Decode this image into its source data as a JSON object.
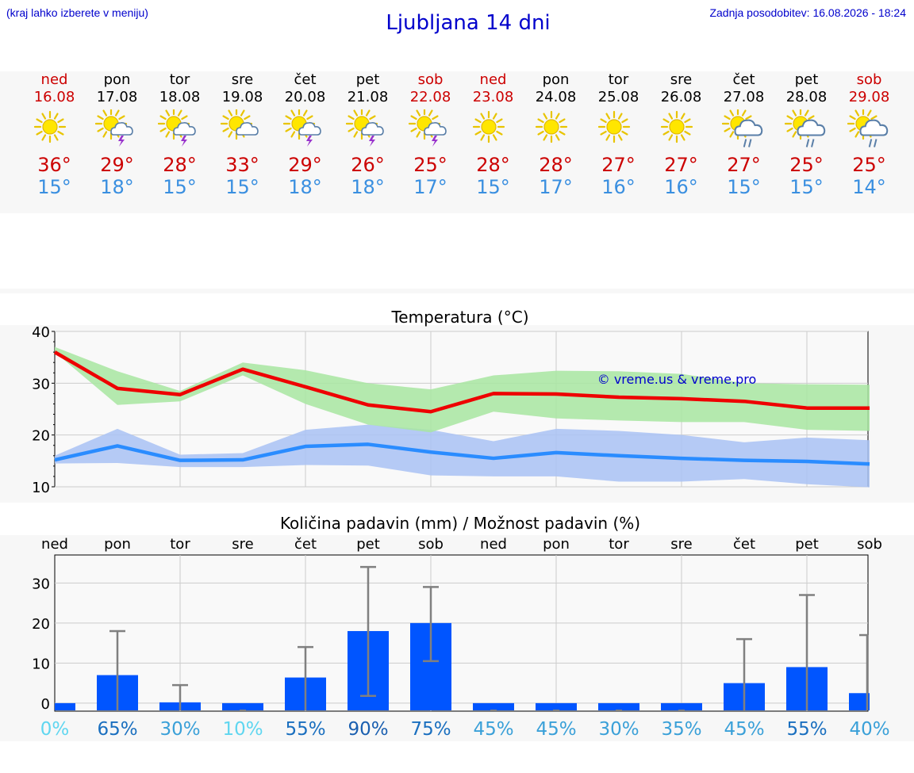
{
  "header": {
    "hint": "(kraj lahko izberete v meniju)",
    "title": "Ljubljana 14 dni",
    "updated": "Zadnja posodobitev: 16.08.2026 - 18:24"
  },
  "days": [
    {
      "name": "ned",
      "date": "16.08",
      "weekend": true,
      "icon": "sun",
      "max": "36°",
      "min": "15°"
    },
    {
      "name": "pon",
      "date": "17.08",
      "weekend": false,
      "icon": "sun-thunder",
      "max": "29°",
      "min": "18°"
    },
    {
      "name": "tor",
      "date": "18.08",
      "weekend": false,
      "icon": "sun-thunder",
      "max": "28°",
      "min": "15°"
    },
    {
      "name": "sre",
      "date": "19.08",
      "weekend": false,
      "icon": "sun-cloud",
      "max": "33°",
      "min": "15°"
    },
    {
      "name": "čet",
      "date": "20.08",
      "weekend": false,
      "icon": "sun-thunder",
      "max": "29°",
      "min": "18°"
    },
    {
      "name": "pet",
      "date": "21.08",
      "weekend": false,
      "icon": "sun-thunder",
      "max": "26°",
      "min": "18°"
    },
    {
      "name": "sob",
      "date": "22.08",
      "weekend": true,
      "icon": "sun-thunder",
      "max": "25°",
      "min": "17°"
    },
    {
      "name": "ned",
      "date": "23.08",
      "weekend": true,
      "icon": "sun",
      "max": "28°",
      "min": "15°"
    },
    {
      "name": "pon",
      "date": "24.08",
      "weekend": false,
      "icon": "sun",
      "max": "28°",
      "min": "17°"
    },
    {
      "name": "tor",
      "date": "25.08",
      "weekend": false,
      "icon": "sun",
      "max": "27°",
      "min": "16°"
    },
    {
      "name": "sre",
      "date": "26.08",
      "weekend": false,
      "icon": "sun",
      "max": "27°",
      "min": "16°"
    },
    {
      "name": "čet",
      "date": "27.08",
      "weekend": false,
      "icon": "sun-rain",
      "max": "27°",
      "min": "15°"
    },
    {
      "name": "pet",
      "date": "28.08",
      "weekend": false,
      "icon": "sun-rain",
      "max": "25°",
      "min": "15°"
    },
    {
      "name": "sob",
      "date": "29.08",
      "weekend": true,
      "icon": "sun-rain",
      "max": "25°",
      "min": "14°"
    }
  ],
  "colors": {
    "red": "#cc0000",
    "blue": "#3a8fe0",
    "maxLine": "#ee0000",
    "minLine": "#2a8cff",
    "maxBand": "#a8e6a1",
    "minBand": "#a9c2f5",
    "bar": "#0055ff",
    "whisker": "#808080"
  },
  "chart_data": [
    {
      "type": "line",
      "title": "Temperatura (°C)",
      "watermark": "© vreme.us & vreme.pro",
      "ylim": [
        10,
        40
      ],
      "yticks": [
        10,
        20,
        30,
        40
      ],
      "grid": true,
      "series": [
        {
          "values": [
            36,
            29,
            27.8,
            32.7,
            29.3,
            25.8,
            24.5,
            28,
            27.9,
            27.3,
            27,
            26.5,
            25.2,
            25.2
          ],
          "band_low": [
            36,
            25.8,
            26.5,
            31.5,
            26,
            22,
            20.5,
            24.5,
            23.2,
            22.8,
            22.5,
            22.5,
            21,
            20.8
          ],
          "band_high": [
            37,
            32.3,
            28.5,
            34,
            32.5,
            30,
            28.8,
            31.5,
            32.4,
            32.3,
            31.8,
            30,
            29.8,
            29.7
          ]
        },
        {
          "values": [
            15.2,
            17.9,
            15.1,
            15.2,
            17.8,
            18.2,
            16.7,
            15.5,
            16.6,
            16,
            15.5,
            15.1,
            14.9,
            14.4
          ],
          "band_low": [
            14.5,
            14.6,
            13.8,
            13.8,
            14.2,
            14.1,
            12.2,
            12,
            12,
            11,
            11,
            11.5,
            10.5,
            9.9
          ],
          "band_high": [
            16,
            21.2,
            16.2,
            16.5,
            21,
            22,
            21,
            18.8,
            21.2,
            20.8,
            20,
            18.6,
            19.5,
            19
          ]
        }
      ]
    },
    {
      "type": "bar",
      "title": "Količina padavin (mm) / Možnost padavin (%)",
      "categories": [
        "ned",
        "pon",
        "tor",
        "sre",
        "čet",
        "pet",
        "sob",
        "ned",
        "pon",
        "tor",
        "sre",
        "čet",
        "pet",
        "sob"
      ],
      "ylim": [
        -2,
        37
      ],
      "yticks": [
        0,
        10,
        20,
        30
      ],
      "values": [
        0,
        7,
        0.2,
        0,
        6.4,
        18,
        20,
        0,
        0,
        0,
        0,
        5,
        9,
        2.5
      ],
      "err_low": [
        0,
        0,
        0,
        0,
        0,
        1.8,
        10.5,
        0,
        0,
        0,
        0,
        0,
        0,
        0
      ],
      "err_high": [
        0,
        18,
        4.5,
        0,
        14,
        34,
        29,
        0,
        0,
        0,
        0,
        16,
        27,
        17
      ],
      "chance": [
        "0%",
        "65%",
        "30%",
        "10%",
        "55%",
        "90%",
        "75%",
        "45%",
        "45%",
        "30%",
        "35%",
        "45%",
        "55%",
        "40%"
      ],
      "chance_colors": [
        "#5fd6f0",
        "#1a6fbf",
        "#3aa0d8",
        "#5fd6f0",
        "#1a6fbf",
        "#1a5fb0",
        "#1a6fbf",
        "#3aa0d8",
        "#3aa0d8",
        "#3aa0d8",
        "#3aa0d8",
        "#3aa0d8",
        "#1a6fbf",
        "#3aa0d8"
      ]
    }
  ]
}
